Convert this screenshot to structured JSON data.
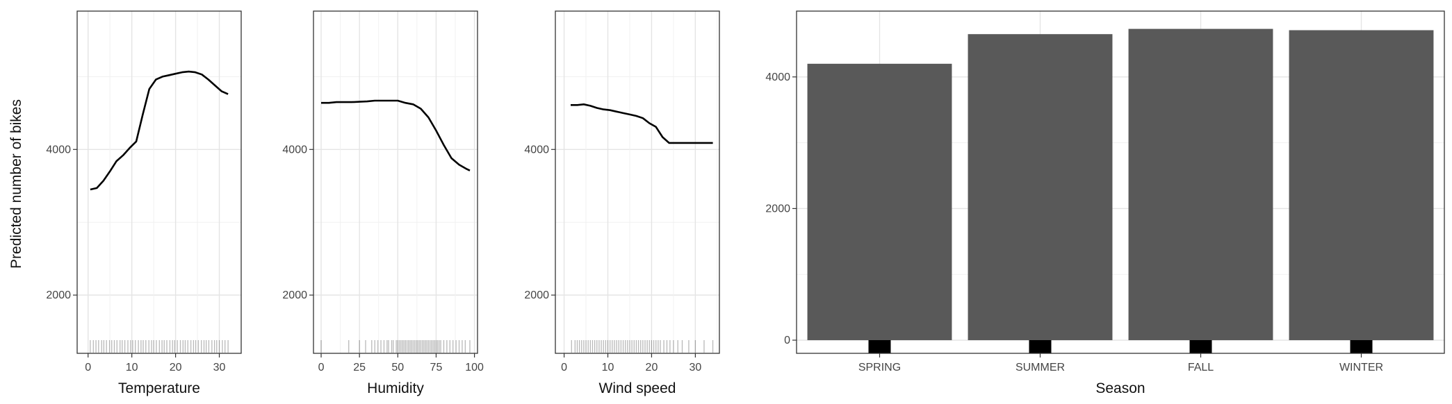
{
  "chart_data": [
    {
      "type": "line",
      "xlabel": "Temperature",
      "ylabel": "Predicted number of bikes",
      "xlim": [
        -2.5,
        35
      ],
      "ylim": [
        1200,
        5900
      ],
      "xticks": [
        0,
        10,
        20,
        30
      ],
      "yticks": [
        2000,
        4000
      ],
      "grid": true,
      "series": [
        {
          "x": [
            0.5,
            2,
            3.5,
            5,
            6.5,
            8,
            9.5,
            11,
            12.5,
            14,
            15.5,
            17,
            18.5,
            20,
            21.5,
            23,
            24.5,
            26,
            27.5,
            29,
            30.5,
            32
          ],
          "y": [
            3450,
            3470,
            3570,
            3700,
            3840,
            3920,
            4020,
            4110,
            4480,
            4830,
            4960,
            5000,
            5020,
            5040,
            5060,
            5070,
            5060,
            5030,
            4960,
            4880,
            4800,
            4760
          ]
        }
      ],
      "rug": [
        0.5,
        1.2,
        1.8,
        2.4,
        3.1,
        3.6,
        4.2,
        4.9,
        5.4,
        6.0,
        6.6,
        7.3,
        7.8,
        8.4,
        9.1,
        9.7,
        10.2,
        10.8,
        11.5,
        12.1,
        12.6,
        13.2,
        13.9,
        14.5,
        15.0,
        15.6,
        16.3,
        16.9,
        17.4,
        18.0,
        18.7,
        19.3,
        19.8,
        20.4,
        21.1,
        21.7,
        22.2,
        22.8,
        23.5,
        24.1,
        24.6,
        25.2,
        25.9,
        26.5,
        27.0,
        27.6,
        28.3,
        28.9,
        29.4,
        30.0,
        30.7,
        31.3,
        32.0
      ]
    },
    {
      "type": "line",
      "xlabel": "Humidity",
      "ylabel": "",
      "xlim": [
        -5,
        102
      ],
      "ylim": [
        1200,
        5900
      ],
      "xticks": [
        0,
        25,
        50,
        75,
        100
      ],
      "yticks": [
        2000,
        4000
      ],
      "grid": true,
      "series": [
        {
          "x": [
            0,
            5,
            10,
            15,
            20,
            25,
            30,
            35,
            40,
            45,
            50,
            55,
            60,
            65,
            70,
            75,
            80,
            85,
            90,
            95,
            97
          ],
          "y": [
            4640,
            4640,
            4650,
            4650,
            4650,
            4655,
            4660,
            4670,
            4670,
            4670,
            4670,
            4640,
            4620,
            4560,
            4440,
            4260,
            4060,
            3880,
            3790,
            3730,
            3710
          ]
        }
      ],
      "rug": [
        0,
        18,
        25,
        29,
        33,
        35,
        37,
        39,
        41,
        43,
        44,
        46,
        47,
        49,
        50,
        51,
        52,
        53,
        54,
        55,
        56,
        57,
        58,
        59,
        60,
        61,
        62,
        63,
        64,
        65,
        66,
        67,
        68,
        69,
        70,
        71,
        72,
        73,
        74,
        75,
        76,
        77,
        78,
        80,
        82,
        84,
        86,
        88,
        90,
        92,
        94,
        97
      ]
    },
    {
      "type": "line",
      "xlabel": "Wind speed",
      "ylabel": "",
      "xlim": [
        -2,
        35.5
      ],
      "ylim": [
        1200,
        5900
      ],
      "xticks": [
        0,
        10,
        20,
        30
      ],
      "yticks": [
        2000,
        4000
      ],
      "grid": true,
      "series": [
        {
          "x": [
            1.5,
            3,
            4.5,
            6,
            7.5,
            9,
            10.5,
            12,
            13.5,
            15,
            16.5,
            18,
            19.5,
            21,
            22.5,
            24,
            25.5,
            27,
            28.5,
            30,
            31.5,
            33,
            34
          ],
          "y": [
            4610,
            4610,
            4620,
            4600,
            4570,
            4550,
            4540,
            4520,
            4500,
            4480,
            4460,
            4430,
            4360,
            4310,
            4170,
            4090,
            4090,
            4090,
            4090,
            4090,
            4090,
            4090,
            4090
          ]
        }
      ],
      "rug": [
        1.7,
        2.5,
        3.0,
        3.5,
        4.0,
        4.5,
        5.0,
        5.5,
        6.0,
        6.5,
        7.0,
        7.5,
        8.0,
        8.5,
        9.0,
        9.5,
        10.0,
        10.5,
        11.0,
        11.5,
        12.0,
        12.5,
        13.0,
        13.5,
        14.0,
        14.5,
        15.0,
        15.5,
        16.0,
        16.5,
        17.0,
        17.5,
        18.0,
        18.5,
        19.0,
        19.5,
        20.0,
        20.5,
        21.0,
        21.5,
        22.0,
        22.8,
        23.5,
        24.2,
        25.0,
        26.0,
        27.0,
        28.5,
        30.0,
        32.0,
        34.0
      ]
    },
    {
      "type": "bar",
      "xlabel": "Season",
      "ylabel": "",
      "categories": [
        "SPRING",
        "SUMMER",
        "FALL",
        "WINTER"
      ],
      "values": [
        4200,
        4650,
        4730,
        4710
      ],
      "ylim": [
        -200,
        5000
      ],
      "yticks": [
        0,
        2000,
        4000
      ],
      "grid": true
    }
  ],
  "colors": {
    "bar": "#595959",
    "line": "#000000",
    "grid": "#e4e4e4",
    "border": "#333333"
  }
}
